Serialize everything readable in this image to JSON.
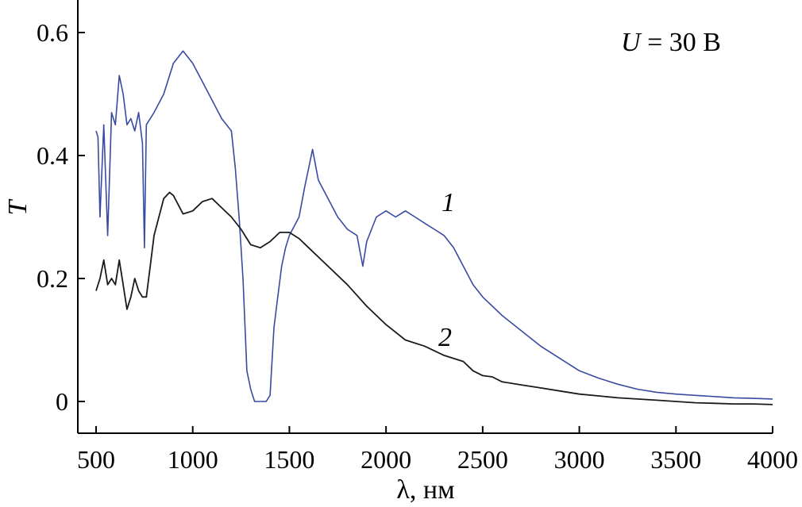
{
  "chart_data": {
    "type": "line",
    "xlabel": "λ, нм",
    "ylabel": "T",
    "annotation_var": "U",
    "annotation_rest": " = 30 В",
    "xlim": [
      500,
      4000
    ],
    "ylim": [
      -0.05,
      0.65
    ],
    "xticks": [
      500,
      1000,
      1500,
      2000,
      2500,
      3000,
      3500,
      4000
    ],
    "xtick_labels": [
      "500",
      "1000",
      "1500",
      "2000",
      "2500",
      "3000",
      "3500",
      "4000"
    ],
    "yticks": [
      0,
      0.2,
      0.4,
      0.6
    ],
    "ytick_labels": [
      "0",
      "0.2",
      "0.4",
      "0.6"
    ],
    "grid": false,
    "series": [
      {
        "name": "1",
        "color": "#3a4aa0",
        "x": [
          500,
          510,
          520,
          540,
          560,
          580,
          600,
          620,
          640,
          660,
          680,
          700,
          720,
          740,
          750,
          760,
          780,
          800,
          850,
          900,
          950,
          1000,
          1050,
          1100,
          1150,
          1200,
          1220,
          1240,
          1260,
          1280,
          1300,
          1320,
          1350,
          1380,
          1400,
          1420,
          1440,
          1460,
          1480,
          1500,
          1550,
          1580,
          1600,
          1620,
          1650,
          1700,
          1750,
          1800,
          1850,
          1880,
          1900,
          1950,
          2000,
          2050,
          2100,
          2150,
          2200,
          2250,
          2300,
          2350,
          2400,
          2450,
          2500,
          2600,
          2700,
          2800,
          2900,
          3000,
          3100,
          3200,
          3300,
          3400,
          3500,
          3600,
          3700,
          3800,
          3900,
          4000
        ],
        "y": [
          0.44,
          0.43,
          0.3,
          0.45,
          0.27,
          0.47,
          0.45,
          0.53,
          0.5,
          0.45,
          0.46,
          0.44,
          0.47,
          0.42,
          0.25,
          0.45,
          0.46,
          0.47,
          0.5,
          0.55,
          0.57,
          0.55,
          0.52,
          0.49,
          0.46,
          0.44,
          0.38,
          0.3,
          0.2,
          0.05,
          0.02,
          0.0,
          0.0,
          0.0,
          0.01,
          0.12,
          0.17,
          0.22,
          0.25,
          0.27,
          0.3,
          0.35,
          0.38,
          0.41,
          0.36,
          0.33,
          0.3,
          0.28,
          0.27,
          0.22,
          0.26,
          0.3,
          0.31,
          0.3,
          0.31,
          0.3,
          0.29,
          0.28,
          0.27,
          0.25,
          0.22,
          0.19,
          0.17,
          0.14,
          0.115,
          0.09,
          0.07,
          0.05,
          0.038,
          0.028,
          0.02,
          0.015,
          0.012,
          0.01,
          0.008,
          0.006,
          0.005,
          0.004
        ]
      },
      {
        "name": "2",
        "color": "#1a1a1a",
        "x": [
          500,
          520,
          540,
          560,
          580,
          600,
          620,
          640,
          660,
          680,
          700,
          720,
          740,
          760,
          780,
          800,
          850,
          880,
          900,
          950,
          1000,
          1050,
          1100,
          1150,
          1200,
          1250,
          1300,
          1350,
          1400,
          1450,
          1500,
          1550,
          1600,
          1700,
          1800,
          1900,
          2000,
          2100,
          2200,
          2300,
          2400,
          2450,
          2500,
          2550,
          2600,
          2700,
          2800,
          2900,
          3000,
          3100,
          3200,
          3300,
          3400,
          3500,
          3600,
          3700,
          3800,
          3900,
          4000
        ],
        "y": [
          0.18,
          0.2,
          0.23,
          0.19,
          0.2,
          0.19,
          0.23,
          0.19,
          0.15,
          0.17,
          0.2,
          0.18,
          0.17,
          0.17,
          0.22,
          0.27,
          0.33,
          0.34,
          0.335,
          0.305,
          0.31,
          0.325,
          0.33,
          0.315,
          0.3,
          0.28,
          0.255,
          0.25,
          0.26,
          0.275,
          0.275,
          0.265,
          0.25,
          0.22,
          0.19,
          0.155,
          0.125,
          0.1,
          0.09,
          0.075,
          0.065,
          0.05,
          0.042,
          0.04,
          0.032,
          0.027,
          0.022,
          0.017,
          0.012,
          0.009,
          0.006,
          0.004,
          0.002,
          0.0,
          -0.002,
          -0.003,
          -0.004,
          -0.004,
          -0.005
        ]
      }
    ]
  }
}
